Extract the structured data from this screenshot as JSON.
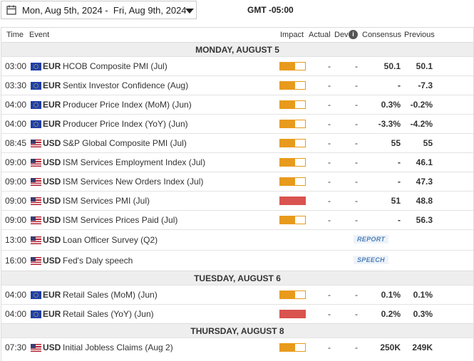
{
  "header": {
    "date_range": "Mon, Aug 5th, 2024 -  Fri, Aug 9th, 2024",
    "timezone": "GMT -05:00"
  },
  "columns": {
    "time": "Time",
    "event": "Event",
    "impact": "Impact",
    "actual": "Actual",
    "dev": "Dev",
    "consensus": "Consensus",
    "previous": "Previous"
  },
  "colors": {
    "medium_impact": "#e89a1c",
    "high_impact": "#d9534f",
    "tag_text": "#4f7fb8"
  },
  "days": [
    {
      "label": "MONDAY, AUGUST 5",
      "events": [
        {
          "time": "03:00",
          "currency": "EUR",
          "flag": "eu-flag",
          "event": "HCOB Composite PMI (Jul)",
          "impact": "medium",
          "actual": "-",
          "dev": "-",
          "consensus": "50.1",
          "previous": "50.1"
        },
        {
          "time": "03:30",
          "currency": "EUR",
          "flag": "eu-flag",
          "event": "Sentix Investor Confidence (Aug)",
          "impact": "medium",
          "actual": "-",
          "dev": "-",
          "consensus": "-",
          "previous": "-7.3"
        },
        {
          "time": "04:00",
          "currency": "EUR",
          "flag": "eu-flag",
          "event": "Producer Price Index (MoM) (Jun)",
          "impact": "medium",
          "actual": "-",
          "dev": "-",
          "consensus": "0.3%",
          "previous": "-0.2%"
        },
        {
          "time": "04:00",
          "currency": "EUR",
          "flag": "eu-flag",
          "event": "Producer Price Index (YoY) (Jun)",
          "impact": "medium",
          "actual": "-",
          "dev": "-",
          "consensus": "-3.3%",
          "previous": "-4.2%"
        },
        {
          "time": "08:45",
          "currency": "USD",
          "flag": "us-flag",
          "event": "S&P Global Composite PMI (Jul)",
          "impact": "medium",
          "actual": "-",
          "dev": "-",
          "consensus": "55",
          "previous": "55"
        },
        {
          "time": "09:00",
          "currency": "USD",
          "flag": "us-flag",
          "event": "ISM Services Employment Index (Jul)",
          "impact": "medium",
          "actual": "-",
          "dev": "-",
          "consensus": "-",
          "previous": "46.1"
        },
        {
          "time": "09:00",
          "currency": "USD",
          "flag": "us-flag",
          "event": "ISM Services New Orders Index (Jul)",
          "impact": "medium",
          "actual": "-",
          "dev": "-",
          "consensus": "-",
          "previous": "47.3"
        },
        {
          "time": "09:00",
          "currency": "USD",
          "flag": "us-flag",
          "event": "ISM Services PMI (Jul)",
          "impact": "high",
          "actual": "-",
          "dev": "-",
          "consensus": "51",
          "previous": "48.8"
        },
        {
          "time": "09:00",
          "currency": "USD",
          "flag": "us-flag",
          "event": "ISM Services Prices Paid (Jul)",
          "impact": "medium",
          "actual": "-",
          "dev": "-",
          "consensus": "-",
          "previous": "56.3"
        },
        {
          "time": "13:00",
          "currency": "USD",
          "flag": "us-flag",
          "event": "Loan Officer Survey (Q2)",
          "tag": "REPORT"
        },
        {
          "time": "16:00",
          "currency": "USD",
          "flag": "us-flag",
          "event": "Fed's Daly speech",
          "tag": "SPEECH"
        }
      ]
    },
    {
      "label": "TUESDAY, AUGUST 6",
      "events": [
        {
          "time": "04:00",
          "currency": "EUR",
          "flag": "eu-flag",
          "event": "Retail Sales (MoM) (Jun)",
          "impact": "medium",
          "actual": "-",
          "dev": "-",
          "consensus": "0.1%",
          "previous": "0.1%"
        },
        {
          "time": "04:00",
          "currency": "EUR",
          "flag": "eu-flag",
          "event": "Retail Sales (YoY) (Jun)",
          "impact": "high",
          "actual": "-",
          "dev": "-",
          "consensus": "0.2%",
          "previous": "0.3%"
        }
      ]
    },
    {
      "label": "THURSDAY, AUGUST 8",
      "events": [
        {
          "time": "07:30",
          "currency": "USD",
          "flag": "us-flag",
          "event": "Initial Jobless Claims (Aug 2)",
          "impact": "medium",
          "actual": "-",
          "dev": "-",
          "consensus": "250K",
          "previous": "249K"
        }
      ]
    }
  ]
}
